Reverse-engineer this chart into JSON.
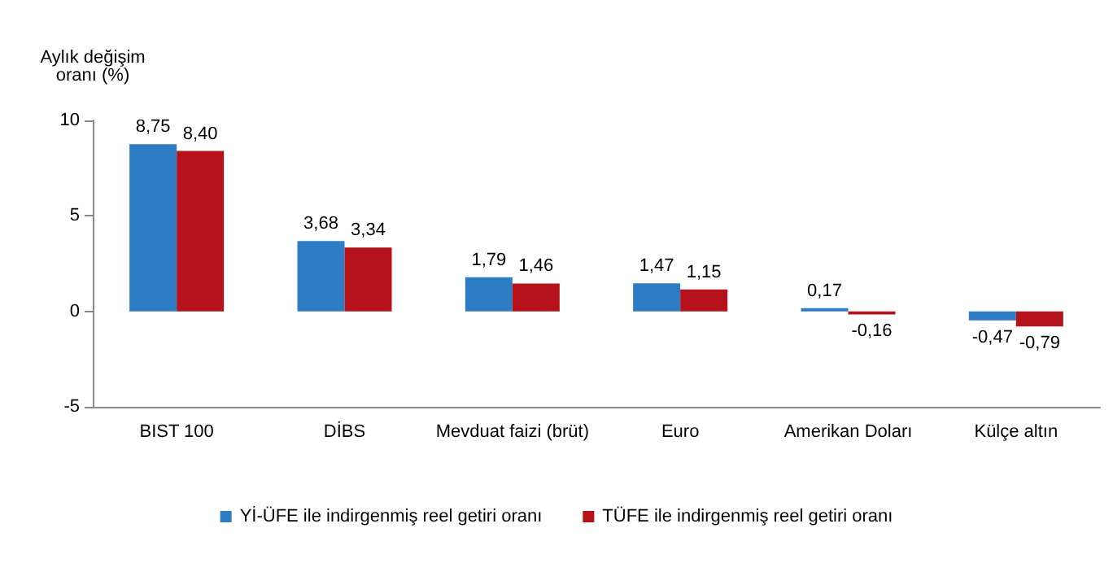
{
  "chart_data": {
    "type": "bar",
    "ylabel": "Aylık değişim\noranı (%)",
    "categories": [
      "BIST 100",
      "DİBS",
      "Mevduat faizi (brüt)",
      "Euro",
      "Amerikan Doları",
      "Külçe altın"
    ],
    "series": [
      {
        "name": "Yİ-ÜFE ile indirgenmiş reel getiri oranı",
        "color": "#2e7cc4",
        "values": [
          8.75,
          3.68,
          1.79,
          1.47,
          0.17,
          -0.47
        ],
        "value_labels": [
          "8,75",
          "3,68",
          "1,79",
          "1,47",
          "0,17",
          "-0,47"
        ]
      },
      {
        "name": "TÜFE ile indirgenmiş reel getiri oranı",
        "color": "#b5121b",
        "values": [
          8.4,
          3.34,
          1.46,
          1.15,
          -0.16,
          -0.79
        ],
        "value_labels": [
          "8,40",
          "3,34",
          "1,46",
          "1,15",
          "-0,16",
          "-0,79"
        ]
      }
    ],
    "ylim": [
      -5,
      10
    ],
    "yticks": [
      -5,
      0,
      5,
      10
    ],
    "grid": false,
    "legend": "bottom"
  }
}
